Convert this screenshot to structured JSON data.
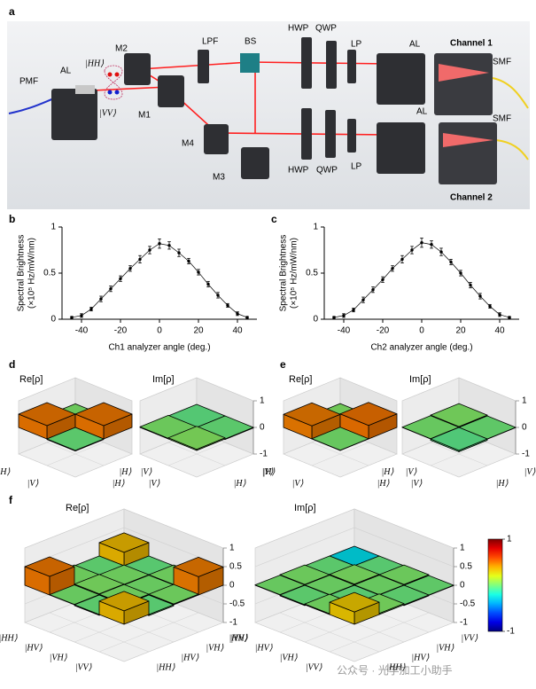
{
  "diagram": {
    "panel": "a",
    "labels": [
      "PMF",
      "AL",
      "|HH⟩",
      "|VV⟩",
      "M2",
      "M1",
      "LPF",
      "BS",
      "HWP",
      "QWP",
      "LP",
      "AL",
      "Channel 1",
      "SMF",
      "AL",
      "SMF",
      "M4",
      "M3",
      "HWP",
      "QWP",
      "LP",
      "Channel 2"
    ]
  },
  "chart_data": [
    {
      "type": "line",
      "panel": "b",
      "xlabel": "Ch1 analyzer angle (deg.)",
      "ylabel": [
        "Spectral Brightness",
        "(×10⁵ Hz/mW/nm)"
      ],
      "x": [
        -45,
        -40,
        -35,
        -30,
        -25,
        -20,
        -15,
        -10,
        -5,
        0,
        5,
        10,
        15,
        20,
        25,
        30,
        35,
        40,
        45
      ],
      "values": [
        0.02,
        0.04,
        0.11,
        0.22,
        0.33,
        0.44,
        0.55,
        0.65,
        0.75,
        0.82,
        0.8,
        0.72,
        0.63,
        0.51,
        0.38,
        0.26,
        0.15,
        0.06,
        0.02
      ],
      "errors": [
        0.01,
        0.02,
        0.02,
        0.03,
        0.03,
        0.03,
        0.03,
        0.04,
        0.04,
        0.05,
        0.04,
        0.04,
        0.03,
        0.03,
        0.03,
        0.03,
        0.02,
        0.02,
        0.01
      ],
      "xlim": [
        -50,
        50
      ],
      "xticks": [
        -40,
        -20,
        0,
        20,
        40
      ],
      "ylim": [
        0,
        1
      ],
      "yticks": [
        0,
        0.5,
        1
      ],
      "color": "#000000"
    },
    {
      "type": "line",
      "panel": "c",
      "xlabel": "Ch2 analyzer angle (deg.)",
      "ylabel": [
        "Spectral Brightness",
        "(×10⁵ Hz/mW/nm)"
      ],
      "x": [
        -45,
        -40,
        -35,
        -30,
        -25,
        -20,
        -15,
        -10,
        -5,
        0,
        5,
        10,
        15,
        20,
        25,
        30,
        35,
        40,
        45
      ],
      "values": [
        0.02,
        0.04,
        0.1,
        0.21,
        0.32,
        0.43,
        0.55,
        0.65,
        0.75,
        0.83,
        0.81,
        0.73,
        0.62,
        0.5,
        0.37,
        0.25,
        0.14,
        0.05,
        0.02
      ],
      "errors": [
        0.01,
        0.02,
        0.02,
        0.03,
        0.03,
        0.03,
        0.03,
        0.04,
        0.04,
        0.05,
        0.04,
        0.04,
        0.03,
        0.03,
        0.03,
        0.03,
        0.02,
        0.02,
        0.01
      ],
      "xlim": [
        -50,
        50
      ],
      "xticks": [
        -40,
        -20,
        0,
        20,
        40
      ],
      "ylim": [
        0,
        1
      ],
      "yticks": [
        0,
        0.5,
        1
      ],
      "color": "#000000"
    },
    {
      "type": "bar3d",
      "panel": "d",
      "title": "Re[ρ]",
      "row_labels": [
        "|H⟩",
        "|V⟩"
      ],
      "col_labels": [
        "|H⟩",
        "|V⟩"
      ],
      "values": [
        [
          0.5,
          0.02
        ],
        [
          -0.02,
          0.5
        ]
      ],
      "zlim": [
        -1,
        1
      ],
      "colormap": "jet"
    },
    {
      "type": "bar3d",
      "title": "Im[ρ]",
      "row_labels": [
        "|H⟩",
        "|V⟩"
      ],
      "col_labels": [
        "|H⟩",
        "|V⟩"
      ],
      "values": [
        [
          0.02,
          -0.04
        ],
        [
          0.04,
          -0.02
        ]
      ],
      "zlim": [
        -1,
        1
      ],
      "zticks": [
        -1,
        0,
        1
      ],
      "colormap": "jet"
    },
    {
      "type": "bar3d",
      "panel": "e",
      "title": "Re[ρ]",
      "row_labels": [
        "|H⟩",
        "|V⟩"
      ],
      "col_labels": [
        "|H⟩",
        "|V⟩"
      ],
      "values": [
        [
          0.49,
          0.03
        ],
        [
          0.01,
          0.51
        ]
      ],
      "zlim": [
        -1,
        1
      ],
      "colormap": "jet"
    },
    {
      "type": "bar3d",
      "title": "Im[ρ]",
      "row_labels": [
        "|H⟩",
        "|V⟩"
      ],
      "col_labels": [
        "|H⟩",
        "|V⟩"
      ],
      "values": [
        [
          0.01,
          0.03
        ],
        [
          -0.05,
          -0.01
        ]
      ],
      "zlim": [
        -1,
        1
      ],
      "zticks": [
        -1,
        0,
        1
      ],
      "colormap": "jet"
    },
    {
      "type": "bar3d",
      "panel": "f",
      "title": "Re[ρ]",
      "row_labels": [
        "|HH⟩",
        "|HV⟩",
        "|VH⟩",
        "|VV⟩"
      ],
      "col_labels": [
        "|HH⟩",
        "|HV⟩",
        "|VH⟩",
        "|VV⟩"
      ],
      "values": [
        [
          0.5,
          0.02,
          -0.02,
          0.36
        ],
        [
          0.01,
          0.03,
          0.02,
          -0.03
        ],
        [
          -0.02,
          0.02,
          0.01,
          0.02
        ],
        [
          0.36,
          -0.03,
          0.02,
          0.49
        ]
      ],
      "zlim": [
        -1,
        1
      ],
      "zticks": [
        -1,
        -0.5,
        0,
        0.5,
        1
      ],
      "colormap": "jet"
    },
    {
      "type": "bar3d",
      "title": "Im[ρ]",
      "row_labels": [
        "|HH⟩",
        "|HV⟩",
        "|VH⟩",
        "|VV⟩"
      ],
      "col_labels": [
        "|HH⟩",
        "|HV⟩",
        "|VH⟩",
        "|VV⟩"
      ],
      "values": [
        [
          0.01,
          0.02,
          -0.02,
          -0.28
        ],
        [
          -0.02,
          0.01,
          0.03,
          -0.03
        ],
        [
          0.02,
          -0.03,
          0.01,
          0.02
        ],
        [
          0.33,
          0.03,
          -0.02,
          -0.01
        ]
      ],
      "zlim": [
        -1,
        1
      ],
      "zticks": [
        -1,
        -0.5,
        0,
        0.5,
        1
      ],
      "colormap": "jet",
      "colorbar": {
        "lim": [
          -1,
          1
        ],
        "ticks": [
          -1,
          1
        ]
      }
    }
  ],
  "watermark": "公众号 · 光学加工小助手"
}
